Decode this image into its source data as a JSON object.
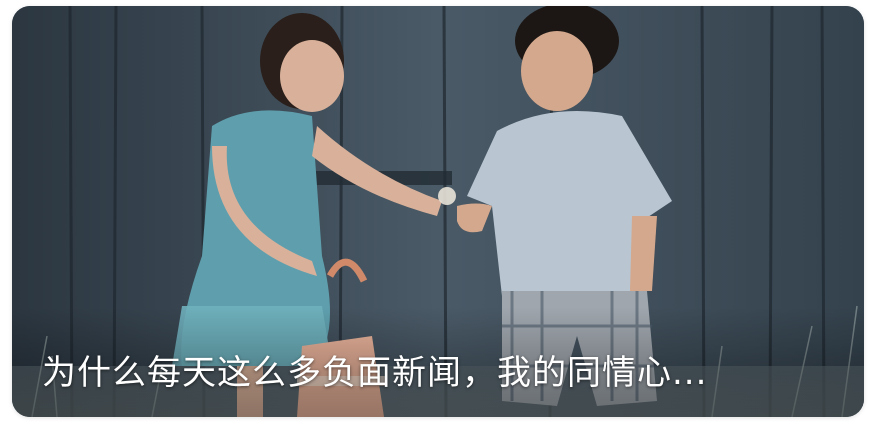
{
  "article": {
    "title": "为什么每天这么多负面新闻，我的同情心..."
  },
  "image": {
    "subject": "photo"
  },
  "colors": {
    "caption_text": "#ffffff"
  }
}
